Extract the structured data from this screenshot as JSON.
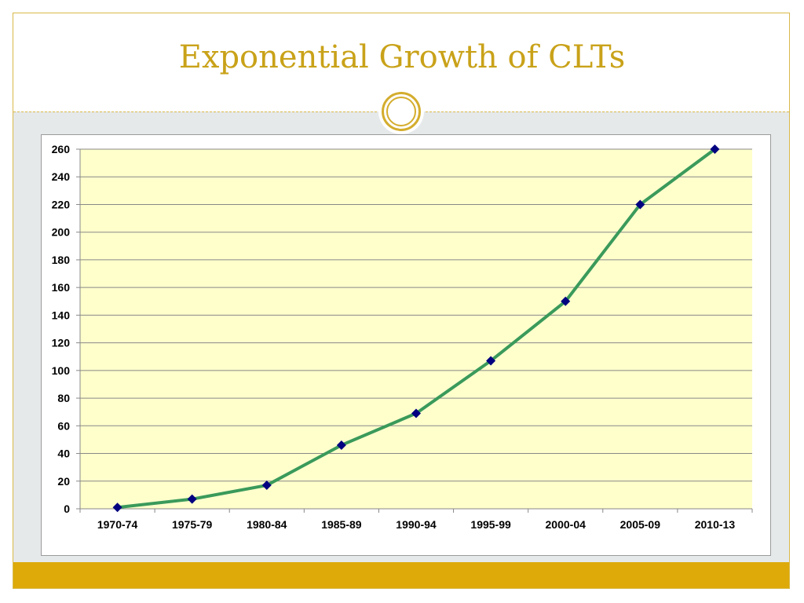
{
  "slide": {
    "title": "Exponential Growth of CLTs"
  },
  "colors": {
    "title": "#c9a219",
    "accent_bar": "#ddaa0a",
    "plot_background": "#ffffcc",
    "line": "#3a9a5b",
    "marker": "#000080",
    "gridline": "#888888"
  },
  "chart_data": {
    "type": "line",
    "categories": [
      "1970-74",
      "1975-79",
      "1980-84",
      "1985-89",
      "1990-94",
      "1995-99",
      "2000-04",
      "2005-09",
      "2010-13"
    ],
    "values": [
      1,
      7,
      17,
      46,
      69,
      107,
      150,
      220,
      260
    ],
    "ylim": [
      0,
      260
    ],
    "yticks": [
      0,
      20,
      40,
      60,
      80,
      100,
      120,
      140,
      160,
      180,
      200,
      220,
      240,
      260
    ],
    "grid": true,
    "legend": "none",
    "title": "",
    "xlabel": "",
    "ylabel": ""
  }
}
